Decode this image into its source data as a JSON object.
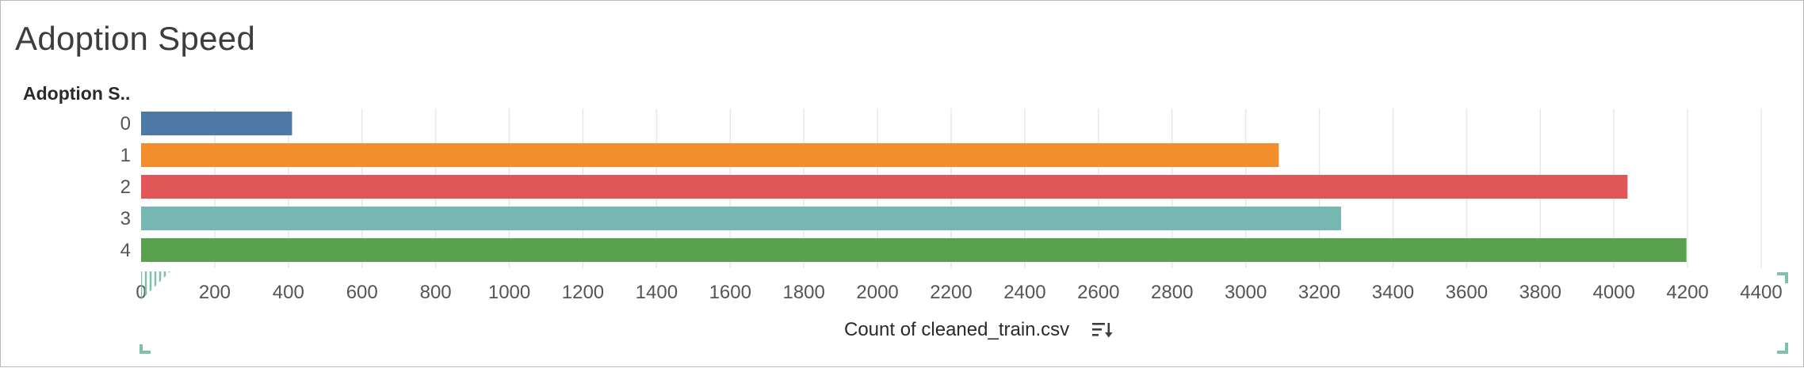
{
  "header": {
    "title": "Adoption Speed",
    "row_header": "Adoption S.."
  },
  "icons": {
    "sort": "sort-descending-icon",
    "corner_markers": "resize-corner-icon"
  },
  "colors": {
    "grid": "#e8e8e8",
    "tick_text": "#555555",
    "selection_marker": "#7fbfad"
  },
  "chart_data": {
    "type": "bar",
    "orientation": "horizontal",
    "categories": [
      "0",
      "1",
      "2",
      "3",
      "4"
    ],
    "values": [
      410,
      3090,
      4037,
      3259,
      4197
    ],
    "colors": [
      "#4e79a7",
      "#f28e2b",
      "#e15759",
      "#76b7b2",
      "#59a14f"
    ],
    "title": "Adoption Speed",
    "xlabel": "Count of cleaned_train.csv",
    "ylabel": "Adoption S..",
    "xlim": [
      0,
      4400
    ],
    "xticks": [
      0,
      200,
      400,
      600,
      800,
      1000,
      1200,
      1400,
      1600,
      1800,
      2000,
      2200,
      2400,
      2600,
      2800,
      3000,
      3200,
      3400,
      3600,
      3800,
      4000,
      4200,
      4400
    ],
    "grid": true,
    "legend": "none"
  }
}
